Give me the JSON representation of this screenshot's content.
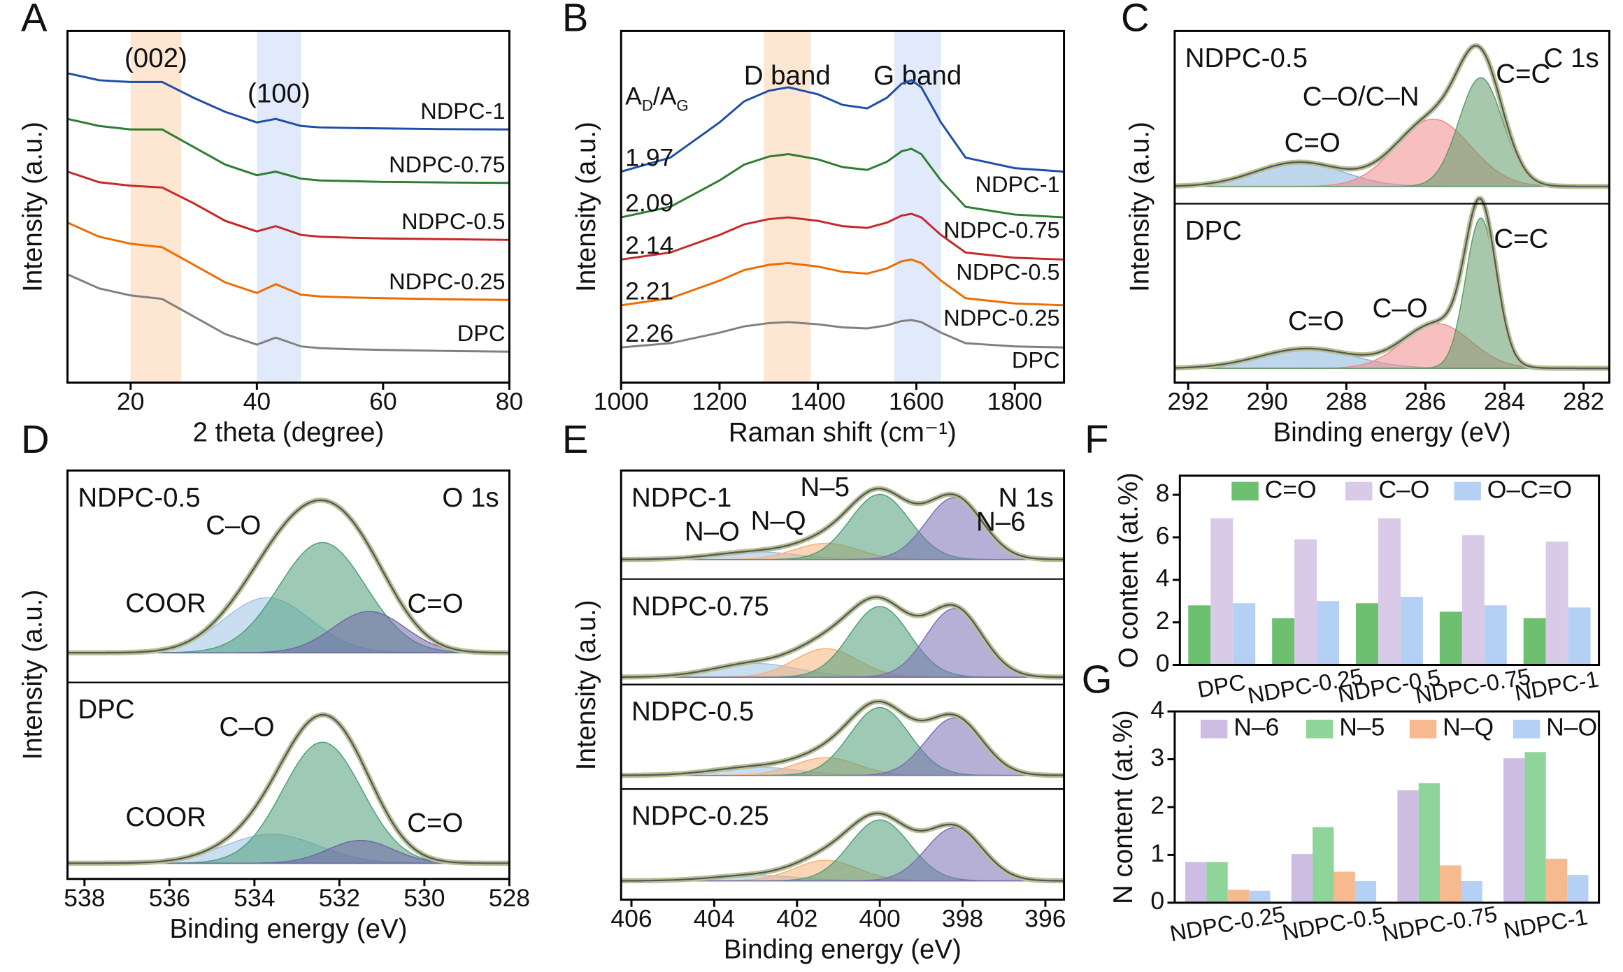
{
  "chart_data": [
    {
      "panel": "A",
      "type": "line",
      "xlabel": "2 theta (degree)",
      "ylabel": "Intensity (a.u.)",
      "xlim": [
        10,
        80
      ],
      "xticks": [
        20,
        40,
        60,
        80
      ],
      "ylim": [
        0,
        100
      ],
      "annotations": [
        {
          "text": "(002)",
          "band": [
            20,
            28
          ],
          "color": "#fde6d2"
        },
        {
          "text": "(100)",
          "band": [
            40,
            47
          ],
          "color": "#e1eafa"
        }
      ],
      "x": [
        10,
        15,
        20,
        25,
        30,
        35,
        40,
        43,
        47,
        50,
        55,
        60,
        70,
        80
      ],
      "series": [
        {
          "name": "NDPC-1",
          "color": "#1f4ea8",
          "values": [
            88,
            86,
            85.5,
            85.5,
            81,
            77,
            74,
            75,
            73,
            72.6,
            72.4,
            72.3,
            72.1,
            72
          ]
        },
        {
          "name": "NDPC-0.75",
          "color": "#2e7d32",
          "values": [
            75,
            73,
            72,
            72,
            67,
            62,
            59,
            60,
            58,
            57.5,
            57.3,
            57.1,
            56.9,
            56.8
          ]
        },
        {
          "name": "NDPC-0.5",
          "color": "#c62828",
          "values": [
            60,
            57,
            56,
            55.5,
            51,
            46,
            43,
            44.5,
            42,
            41.5,
            41.2,
            41,
            40.8,
            40.6
          ]
        },
        {
          "name": "NDPC-0.25",
          "color": "#ef6c00",
          "values": [
            45.5,
            41.5,
            39.5,
            38.5,
            33.5,
            28.5,
            25.5,
            28,
            25,
            24.5,
            24.2,
            24,
            23.7,
            23.5
          ]
        },
        {
          "name": "DPC",
          "color": "#808080",
          "values": [
            30.8,
            26.8,
            24.8,
            23.8,
            18.8,
            13.8,
            10.8,
            12.8,
            10.3,
            9.8,
            9.5,
            9.3,
            9,
            8.8
          ]
        }
      ]
    },
    {
      "panel": "B",
      "type": "line",
      "xlabel": "Raman shift (cm⁻¹)",
      "ylabel": "Intensity (a.u.)",
      "xlim": [
        1000,
        1900
      ],
      "xticks": [
        1000,
        1200,
        1400,
        1600,
        1800
      ],
      "ylim": [
        0,
        100
      ],
      "ratio_header": [
        "A",
        "D",
        "/A",
        "G"
      ],
      "annotations": [
        {
          "text": "D band",
          "band": [
            1290,
            1385
          ],
          "color": "#fde6d2"
        },
        {
          "text": "G band",
          "band": [
            1555,
            1650
          ],
          "color": "#e1eafa"
        }
      ],
      "x": [
        1000,
        1100,
        1200,
        1250,
        1300,
        1340,
        1400,
        1450,
        1500,
        1540,
        1570,
        1590,
        1610,
        1650,
        1700,
        1800,
        1900
      ],
      "series": [
        {
          "name": "NDPC-1",
          "ratio": 1.97,
          "color": "#1f4ea8",
          "values": [
            60,
            64,
            74,
            80,
            83,
            84,
            82,
            79,
            78,
            81,
            85,
            86,
            84,
            74,
            64,
            61,
            60
          ]
        },
        {
          "name": "NDPC-0.75",
          "ratio": 2.09,
          "color": "#2e7d32",
          "values": [
            47,
            50,
            57.5,
            62,
            64.3,
            65,
            63.5,
            61.3,
            60.5,
            62.8,
            65.8,
            66.5,
            65,
            57.5,
            50,
            47.8,
            47
          ]
        },
        {
          "name": "NDPC-0.5",
          "ratio": 2.14,
          "color": "#c62828",
          "values": [
            35,
            37,
            42,
            45,
            46.5,
            47,
            46,
            44.5,
            44,
            45.5,
            47.5,
            48,
            47,
            42,
            37,
            35.5,
            35
          ]
        },
        {
          "name": "NDPC-0.25",
          "ratio": 2.21,
          "color": "#ef6c00",
          "values": [
            22,
            24,
            29,
            32,
            33.5,
            34,
            33,
            31.5,
            31,
            32.5,
            34.5,
            35,
            34,
            29,
            24,
            22.5,
            22
          ]
        },
        {
          "name": "DPC",
          "ratio": 2.26,
          "color": "#808080",
          "values": [
            10,
            11.2,
            14.2,
            16,
            16.9,
            17.2,
            16.6,
            15.7,
            15.4,
            16.3,
            17.5,
            17.8,
            17.2,
            14.2,
            11.2,
            10.3,
            10
          ]
        }
      ]
    },
    {
      "panel": "C",
      "type": "xps",
      "core": "C 1s",
      "xlabel": "Binding energy (eV)",
      "ylabel": "Intensity (a.u.)",
      "xlim": [
        292.34,
        281.35
      ],
      "xticks": [
        292,
        290,
        288,
        286,
        284,
        282
      ],
      "ylim": [
        0,
        100
      ],
      "subpanels": [
        {
          "label": "NDPC-0.5",
          "background": 10,
          "peaks": [
            {
              "name": "C=O",
              "center": 289.2,
              "height": 14,
              "fwhm": 2.6,
              "color": "#8ab6dc",
              "label_color": "#6aaad6"
            },
            {
              "name": "C–O/C–N",
              "center": 285.8,
              "height": 39,
              "fwhm": 2.2,
              "color": "#f08a8a",
              "label_color": "#ee7a7a"
            },
            {
              "name": "C=C",
              "center": 284.6,
              "height": 63,
              "fwhm": 1.3,
              "color": "#5f9a6a",
              "label_color": "#1f8a5a"
            }
          ]
        },
        {
          "label": "DPC",
          "background": 8,
          "peaks": [
            {
              "name": "C=O",
              "center": 289.0,
              "height": 11,
              "fwhm": 2.8,
              "color": "#8ab6dc",
              "label_color": "#6aaad6"
            },
            {
              "name": "C–O",
              "center": 285.7,
              "height": 25,
              "fwhm": 2.0,
              "color": "#f08a8a",
              "label_color": "#ee7a7a"
            },
            {
              "name": "C=C",
              "center": 284.6,
              "height": 84,
              "fwhm": 0.9,
              "color": "#5f9a6a",
              "label_color": "#1f8a5a"
            }
          ]
        }
      ]
    },
    {
      "panel": "D",
      "type": "xps",
      "core": "O 1s",
      "xlabel": "Binding energy (eV)",
      "ylabel": "Intensity (a.u.)",
      "xlim": [
        538.4,
        528.0
      ],
      "xticks": [
        538,
        536,
        534,
        532,
        530,
        528
      ],
      "ylim": [
        0,
        100
      ],
      "subpanels": [
        {
          "label": "NDPC-0.5",
          "background": 14,
          "peaks": [
            {
              "name": "COOR",
              "center": 533.7,
              "height": 26,
              "fwhm": 2.4,
              "color": "#9cc3e6",
              "label_color": "#6aaad6"
            },
            {
              "name": "C–O",
              "center": 532.4,
              "height": 52,
              "fwhm": 2.4,
              "color": "#4f9f78",
              "label_color": "#1f8a5a"
            },
            {
              "name": "C=O",
              "center": 531.3,
              "height": 19.5,
              "fwhm": 2.0,
              "color": "#6f66a8",
              "label_color": "#4b3f9a"
            }
          ]
        },
        {
          "label": "DPC",
          "background": 8,
          "peaks": [
            {
              "name": "COOR",
              "center": 533.6,
              "height": 14.7,
              "fwhm": 2.6,
              "color": "#9cc3e6",
              "label_color": "#6aaad6"
            },
            {
              "name": "C–O",
              "center": 532.4,
              "height": 61.6,
              "fwhm": 2.2,
              "color": "#4f9f78",
              "label_color": "#1f8a5a"
            },
            {
              "name": "C=O",
              "center": 531.5,
              "height": 11.6,
              "fwhm": 1.8,
              "color": "#6f66a8",
              "label_color": "#4b3f9a"
            }
          ]
        }
      ]
    },
    {
      "panel": "E",
      "type": "xps",
      "core": "N 1s",
      "xlabel": "Binding energy (eV)",
      "ylabel": "Intensity (a.u.)",
      "xlim": [
        406.25,
        395.55
      ],
      "xticks": [
        406,
        404,
        402,
        400,
        398,
        396
      ],
      "ylim": [
        0,
        100
      ],
      "subpanels": [
        {
          "label": "NDPC-1",
          "background": 18,
          "peaks": [
            {
              "name": "N–O",
              "center": 403,
              "height": 7,
              "fwhm": 2.4,
              "color": "#9cc3e6",
              "label_color": "#6aaad6"
            },
            {
              "name": "N–Q",
              "center": 401.3,
              "height": 15,
              "fwhm": 1.8,
              "color": "#f5b27a",
              "label_color": "#f08a24"
            },
            {
              "name": "N–5",
              "center": 400,
              "height": 60,
              "fwhm": 1.7,
              "color": "#4f9f78",
              "label_color": "#1f8a5a"
            },
            {
              "name": "N–6",
              "center": 398.2,
              "height": 57,
              "fwhm": 1.6,
              "color": "#7b70b5",
              "label_color": "#4b3f9a"
            }
          ]
        },
        {
          "label": "NDPC-0.75",
          "background": 7,
          "peaks": [
            {
              "center": 403,
              "height": 13,
              "fwhm": 2.4,
              "color": "#9cc3e6"
            },
            {
              "center": 401.3,
              "height": 27,
              "fwhm": 1.8,
              "color": "#f5b27a"
            },
            {
              "center": 400,
              "height": 67,
              "fwhm": 1.7,
              "color": "#4f9f78"
            },
            {
              "center": 398.2,
              "height": 65,
              "fwhm": 1.6,
              "color": "#7b70b5"
            }
          ]
        },
        {
          "label": "NDPC-0.5",
          "background": 13,
          "peaks": [
            {
              "center": 403,
              "height": 8,
              "fwhm": 2.4,
              "color": "#9cc3e6"
            },
            {
              "center": 401.3,
              "height": 17,
              "fwhm": 1.8,
              "color": "#f5b27a"
            },
            {
              "center": 400,
              "height": 65,
              "fwhm": 1.7,
              "color": "#4f9f78"
            },
            {
              "center": 398.2,
              "height": 55,
              "fwhm": 1.6,
              "color": "#7b70b5"
            }
          ]
        },
        {
          "label": "NDPC-0.25",
          "background": 17,
          "peaks": [
            {
              "center": 403,
              "height": 5,
              "fwhm": 2.4,
              "color": "#9cc3e6"
            },
            {
              "center": 401.3,
              "height": 18.5,
              "fwhm": 1.8,
              "color": "#f5b27a"
            },
            {
              "center": 400,
              "height": 55,
              "fwhm": 1.7,
              "color": "#4f9f78"
            },
            {
              "center": 398.2,
              "height": 48,
              "fwhm": 1.6,
              "color": "#7b70b5"
            }
          ]
        }
      ]
    },
    {
      "panel": "F",
      "type": "bar",
      "ylabel": "O content (at.%)",
      "ylim": [
        0,
        8.9
      ],
      "yticks": [
        0,
        2,
        4,
        6,
        8
      ],
      "categories": [
        "DPC",
        "NDPC-0.25",
        "NDPC-0.5",
        "NDPC-0.75",
        "NDPC-1"
      ],
      "series": [
        {
          "name": "C=O",
          "color": "#6cc070",
          "values": [
            2.8,
            2.2,
            2.9,
            2.5,
            2.2
          ]
        },
        {
          "name": "C–O",
          "color": "#d9cbe8",
          "values": [
            6.9,
            5.9,
            6.9,
            6.1,
            5.8
          ]
        },
        {
          "name": "O–C=O",
          "color": "#b5d0f5",
          "values": [
            2.9,
            3.0,
            3.2,
            2.8,
            2.7
          ]
        }
      ]
    },
    {
      "panel": "G",
      "type": "bar",
      "ylabel": "N content (at.%)",
      "ylim": [
        0,
        4
      ],
      "yticks": [
        0,
        1,
        2,
        3,
        4
      ],
      "categories": [
        "NDPC-0.25",
        "NDPC-0.5",
        "NDPC-0.75",
        "NDPC-1"
      ],
      "series": [
        {
          "name": "N–6",
          "color": "#cdbde3",
          "values": [
            0.85,
            1.02,
            2.35,
            3.02
          ]
        },
        {
          "name": "N–5",
          "color": "#8fd49a",
          "values": [
            0.85,
            1.58,
            2.5,
            3.15
          ]
        },
        {
          "name": "N–Q",
          "color": "#f7b98e",
          "values": [
            0.27,
            0.65,
            0.78,
            0.92
          ]
        },
        {
          "name": "N–O",
          "color": "#b5d0f5",
          "values": [
            0.25,
            0.45,
            0.45,
            0.58
          ]
        }
      ]
    }
  ]
}
